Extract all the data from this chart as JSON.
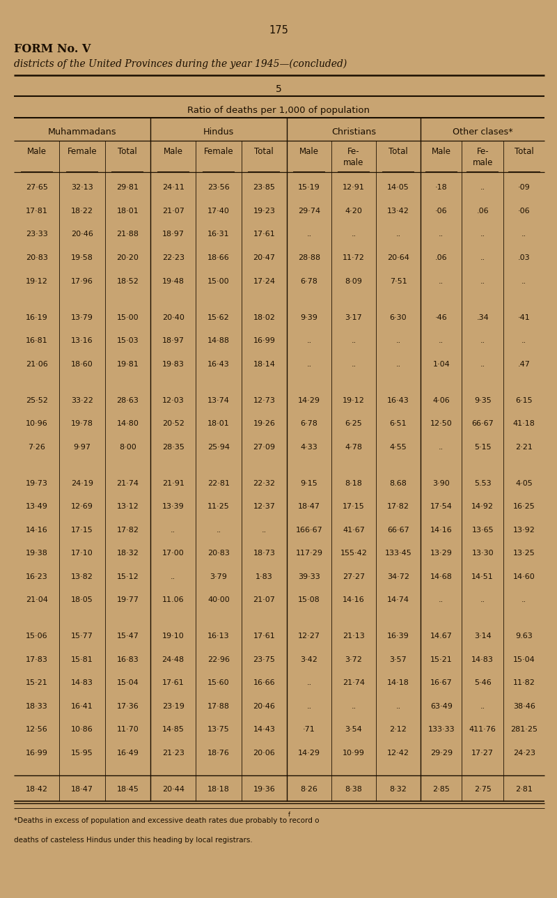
{
  "page_number": "175",
  "form_label": "FORM No. V",
  "subtitle": "districts of the United Provinces during the year 1945—(concluded)",
  "section_number": "5",
  "section_subtitle": "Ratio of deaths per 1,000 of population",
  "group_headers": [
    "Muhammadans",
    "Hindus",
    "Christians",
    "Other clases*"
  ],
  "col_header_labels": [
    "Male",
    "Female",
    "Total",
    "Male",
    "Female",
    "Total",
    "Male",
    "Fe-\nmale",
    "Total",
    "Male",
    "Fe-\nmale",
    "Total"
  ],
  "rows": [
    [
      "27·65",
      "32·13",
      "29·81",
      "24·11",
      "23·56",
      "23·85",
      "15·19",
      "12·91",
      "14·05",
      "·18",
      "..",
      "·09"
    ],
    [
      "17·81",
      "18·22",
      "18·01",
      "21·07",
      "17·40",
      "19·23",
      "29·74",
      "4·20",
      "13·42",
      "·06",
      ".06",
      "·06"
    ],
    [
      "23·33",
      "20·46",
      "21·88",
      "18·97",
      "16·31",
      "17·61",
      "..",
      "..",
      "..",
      "..",
      "..",
      ".."
    ],
    [
      "20·83",
      "19·58",
      "20·20",
      "22·23",
      "18·66",
      "20·47",
      "28·88",
      "11·72",
      "20·64",
      ".06",
      "..",
      ".03"
    ],
    [
      "19·12",
      "17·96",
      "18·52",
      "19·48",
      "15·00",
      "17·24",
      "6·78",
      "8·09",
      "7·51",
      "..",
      "..",
      ".."
    ],
    [
      "",
      "",
      "",
      "",
      "",
      "",
      "",
      "",
      "",
      "",
      "",
      ""
    ],
    [
      "16·19",
      "13·79",
      "15·00",
      "20·40",
      "15·62",
      "18·02",
      "9·39",
      "3·17",
      "6·30",
      "·46",
      ".34",
      "·41"
    ],
    [
      "16·81",
      "13·16",
      "15·03",
      "18·97",
      "14·88",
      "16·99",
      "..",
      "..",
      "..",
      "..",
      "..",
      ".."
    ],
    [
      "21·06",
      "18·60",
      "19·81",
      "19·83",
      "16·43",
      "18·14",
      "..",
      "..",
      "..",
      "1·04",
      "..",
      ".47"
    ],
    [
      "",
      "",
      "",
      "",
      "",
      "",
      "",
      "",
      "",
      "",
      "",
      ""
    ],
    [
      "25·52",
      "33·22",
      "28·63",
      "12·03",
      "13·74",
      "12·73",
      "14·29",
      "19·12",
      "16·43",
      "4·06",
      "9·35",
      "6·15"
    ],
    [
      "10·96",
      "19·78",
      "14·80",
      "20·52",
      "18·01",
      "19·26",
      "6·78",
      "6·25",
      "6·51",
      "12·50",
      "66·67",
      "41·18"
    ],
    [
      "7·26",
      "9·97",
      "8·00",
      "28·35",
      "25·94",
      "27·09",
      "4·33",
      "4·78",
      "4·55",
      "..",
      "5·15",
      "2·21"
    ],
    [
      "",
      "",
      "",
      "",
      "",
      "",
      "",
      "",
      "",
      "",
      "",
      ""
    ],
    [
      "19·73",
      "24·19",
      "21·74",
      "21·91",
      "22·81",
      "22·32",
      "9·15",
      "8·18",
      "8.68",
      "3·90",
      "5.53",
      "4·05"
    ],
    [
      "13·49",
      "12·69",
      "13·12",
      "13·39",
      "11·25",
      "12·37",
      "18·47",
      "17·15",
      "17·82",
      "17·54",
      "14·92",
      "16·25"
    ],
    [
      "14·16",
      "17·15",
      "17·82",
      "..",
      "..",
      "..",
      "166·67",
      "41·67",
      "66·67",
      "14·16",
      "13·65",
      "13·92"
    ],
    [
      "19·38",
      "17·10",
      "18·32",
      "17·00",
      "20·83",
      "18·73",
      "117·29",
      "155·42",
      "133·45",
      "13·29",
      "13·30",
      "13·25"
    ],
    [
      "16·23",
      "13·82",
      "15·12",
      "..",
      "3·79",
      "1·83",
      "39·33",
      "27·27",
      "34·72",
      "14·68",
      "14·51",
      "14·60"
    ],
    [
      "21·04",
      "18·05",
      "19·77",
      "11.06",
      "40·00",
      "21·07",
      "15·08",
      "14·16",
      "14·74",
      "..",
      "..",
      ".."
    ],
    [
      "",
      "",
      "",
      "",
      "",
      "",
      "",
      "",
      "",
      "",
      "",
      ""
    ],
    [
      "15·06",
      "15·77",
      "15·47",
      "19·10",
      "16·13",
      "17·61",
      "12·27",
      "21·13",
      "16·39",
      "14.67",
      "3·14",
      "9.63"
    ],
    [
      "17·83",
      "15·81",
      "16·83",
      "24·48",
      "22·96",
      "23·75",
      "3·42",
      "3·72",
      "3·57",
      "15·21",
      "14·83",
      "15·04"
    ],
    [
      "15·21",
      "14·83",
      "15·04",
      "17·61",
      "15·60",
      "16·66",
      "..",
      "21·74",
      "14·18",
      "16·67",
      "5·46",
      "11·82"
    ],
    [
      "18·33",
      "16·41",
      "17·36",
      "23·19",
      "17·88",
      "20·46",
      "..",
      "..",
      "..",
      "63·49",
      "..",
      "38·46"
    ],
    [
      "12·56",
      "10·86",
      "11·70",
      "14·85",
      "13·75",
      "14·43",
      "·71",
      "3·54",
      "2·12",
      "133·33",
      "411·76",
      "281·25"
    ],
    [
      "16·99",
      "15·95",
      "16·49",
      "21·23",
      "18·76",
      "20·06",
      "14·29",
      "10·99",
      "12·42",
      "29·29",
      "17·27",
      "24·23"
    ],
    [
      "",
      "",
      "",
      "",
      "",
      "",
      "",
      "",
      "",
      "",
      "",
      ""
    ],
    [
      "18·42",
      "18·47",
      "18·45",
      "20·44",
      "18·18",
      "19·36",
      "8·26",
      "8·38",
      "8·32",
      "2·85",
      "2·75",
      "2·81"
    ]
  ],
  "footnote_line1": "*Deaths in excess of population and excessive death rates due probably to record o",
  "footnote_line1_super": "f",
  "footnote_line2": "deaths of casteless Hindus under this heading by local registrars.",
  "bg_color": "#c8a472",
  "text_color": "#1a0e00",
  "line_color": "#1a0e00",
  "group_starts": [
    0.025,
    0.27,
    0.515,
    0.755
  ],
  "group_ends": [
    0.27,
    0.515,
    0.755,
    0.978
  ]
}
